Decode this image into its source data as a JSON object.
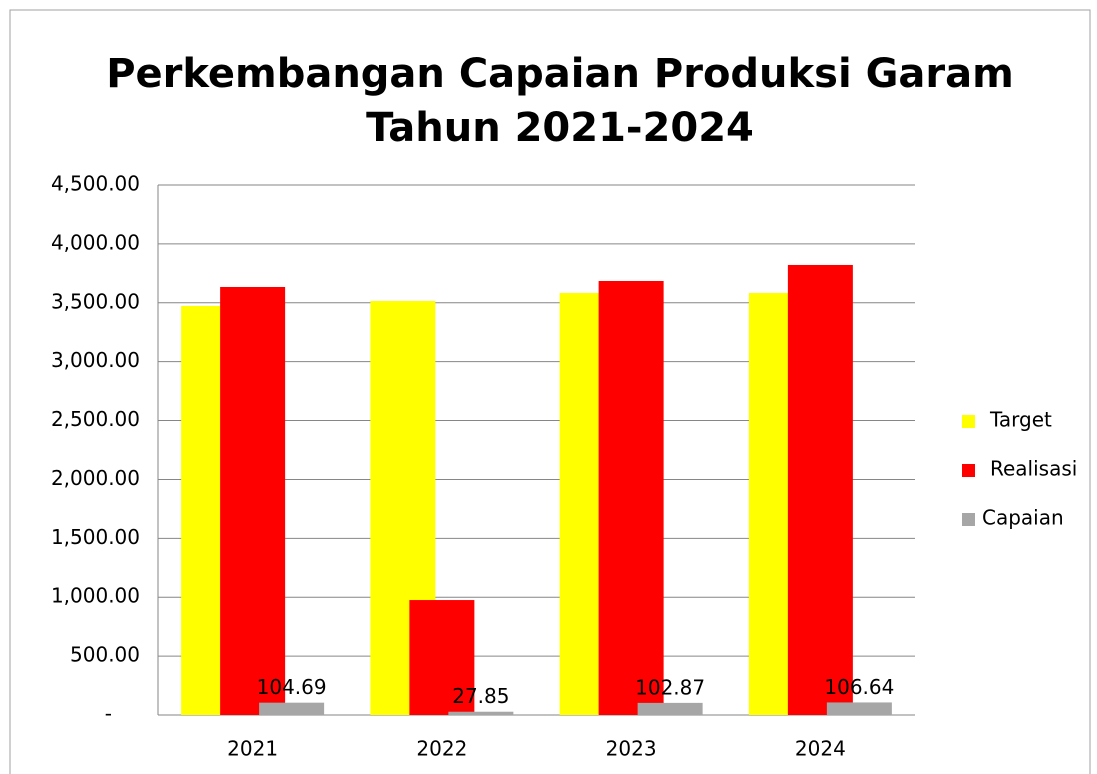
{
  "chart_data": {
    "type": "bar",
    "title": [
      "Perkembangan Capaian Produksi Garam",
      "Tahun 2021-2024"
    ],
    "categories": [
      "2021",
      "2022",
      "2023",
      "2024"
    ],
    "series": [
      {
        "name": "Target",
        "color": "#ffff00",
        "values": [
          3473,
          3515,
          3583,
          3583
        ]
      },
      {
        "name": "Realisasi",
        "color": "#ff0000",
        "values": [
          3634,
          976,
          3685,
          3821
        ]
      },
      {
        "name": "Capaian",
        "color": "#a6a6a6",
        "values": [
          104.69,
          27.85,
          102.87,
          106.64
        ]
      }
    ],
    "data_labels_series": 2,
    "ylim": [
      0,
      4500
    ],
    "yticks": [
      {
        "value": 0,
        "label": "-"
      },
      {
        "value": 500,
        "label": "500.00"
      },
      {
        "value": 1000,
        "label": "1,000.00"
      },
      {
        "value": 1500,
        "label": "1,500.00"
      },
      {
        "value": 2000,
        "label": "2,000.00"
      },
      {
        "value": 2500,
        "label": "2,500.00"
      },
      {
        "value": 3000,
        "label": "3,000.00"
      },
      {
        "value": 3500,
        "label": "3,500.00"
      },
      {
        "value": 4000,
        "label": "4,000.00"
      },
      {
        "value": 4500,
        "label": "4,500.00"
      }
    ],
    "grid": true,
    "legend": "right"
  }
}
